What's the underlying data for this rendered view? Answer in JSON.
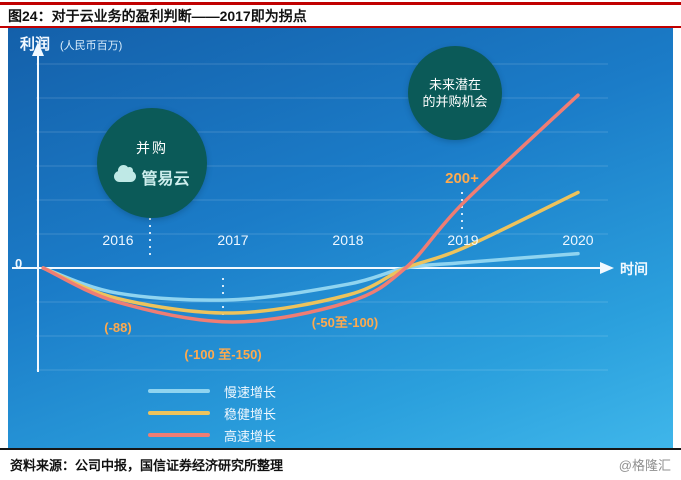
{
  "header": {
    "figure_title": "图24：对于云业务的盈利判断——2017即为拐点"
  },
  "axes": {
    "ylabel": "利润",
    "y_unit": "(人民币百万)",
    "xlabel": "时间",
    "zero": "0",
    "years": [
      "2016",
      "2017",
      "2018",
      "2019",
      "2020"
    ]
  },
  "callouts": {
    "ma": {
      "title": "并购",
      "logo_text": "管易云"
    },
    "future": {
      "line1": "未来潜在",
      "line2": "的并购机会"
    }
  },
  "chart_data": {
    "type": "line",
    "title": "对于云业务的盈利判断——2017即为拐点",
    "xlabel": "时间",
    "ylabel": "利润 (人民币百万)",
    "ylim": [
      -200,
      650
    ],
    "grid": true,
    "legend_position": "bottom-center",
    "x": [
      2015.35,
      2016,
      2017,
      2018,
      2018.5,
      2019,
      2020
    ],
    "series": [
      {
        "name": "慢速增长",
        "color": "#8fd4f0",
        "values": [
          0,
          -70,
          -88,
          -45,
          0,
          15,
          40
        ]
      },
      {
        "name": "稳健增长",
        "color": "#edc35c",
        "values": [
          0,
          -85,
          -125,
          -75,
          0,
          55,
          210
        ]
      },
      {
        "name": "高速增长",
        "color": "#ef7d74",
        "values": [
          0,
          -95,
          -150,
          -95,
          0,
          180,
          480
        ]
      }
    ],
    "annotations": [
      {
        "x": 2016,
        "text": "(-88)"
      },
      {
        "x": 2017,
        "text": "(-100 至-150)"
      },
      {
        "x": 2018,
        "text": "(-50至-100)"
      },
      {
        "x": 2019,
        "text": "200+"
      }
    ]
  },
  "footer": {
    "source": "资料来源：公司中报，国信证券经济研究所整理",
    "watermark": "@格隆汇"
  }
}
